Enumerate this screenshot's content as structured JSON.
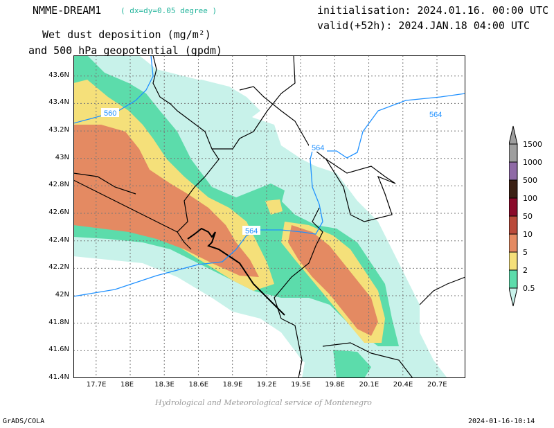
{
  "title": {
    "model": "NMME-DREAM1",
    "resolution": "( dx=dy=0.05 degree )",
    "field_line1": "Wet dust deposition (mg/m²)",
    "field_line2": "and 500 hPa geopotential (gpdm)",
    "init": "initialisation: 2024.01.16. 00:00 UTC",
    "valid": "valid(+52h): 2024.JAN.18 04:00 UTC"
  },
  "footer": {
    "software": "GrADS/COLA",
    "timestamp": "2024-01-16-10:14",
    "credit": "Hydrological and Meteorological service of Montenegro"
  },
  "map": {
    "lon_range": [
      17.5,
      20.95
    ],
    "lat_range": [
      41.4,
      43.75
    ],
    "lon_ticks": [
      "17.7E",
      "18E",
      "18.3E",
      "18.6E",
      "18.9E",
      "19.2E",
      "19.5E",
      "19.8E",
      "20.1E",
      "20.4E",
      "20.7E"
    ],
    "lat_ticks": [
      "41.4N",
      "41.6N",
      "41.8N",
      "42N",
      "42.2N",
      "42.4N",
      "42.6N",
      "42.8N",
      "43N",
      "43.2N",
      "43.4N",
      "43.6N"
    ],
    "contour_labels": [
      "560",
      "564",
      "564",
      "564"
    ],
    "contour_color": "#1e90ff"
  },
  "colorbar": {
    "levels": [
      "0.5",
      "2",
      "5",
      "10",
      "50",
      "100",
      "500",
      "1000",
      "1500"
    ],
    "colors": [
      "#c8f2ea",
      "#5cdcab",
      "#f5e07a",
      "#e48a62",
      "#b94a3a",
      "#8a0a2a",
      "#3b2014",
      "#8f6aa6",
      "#9e9e9e"
    ]
  }
}
